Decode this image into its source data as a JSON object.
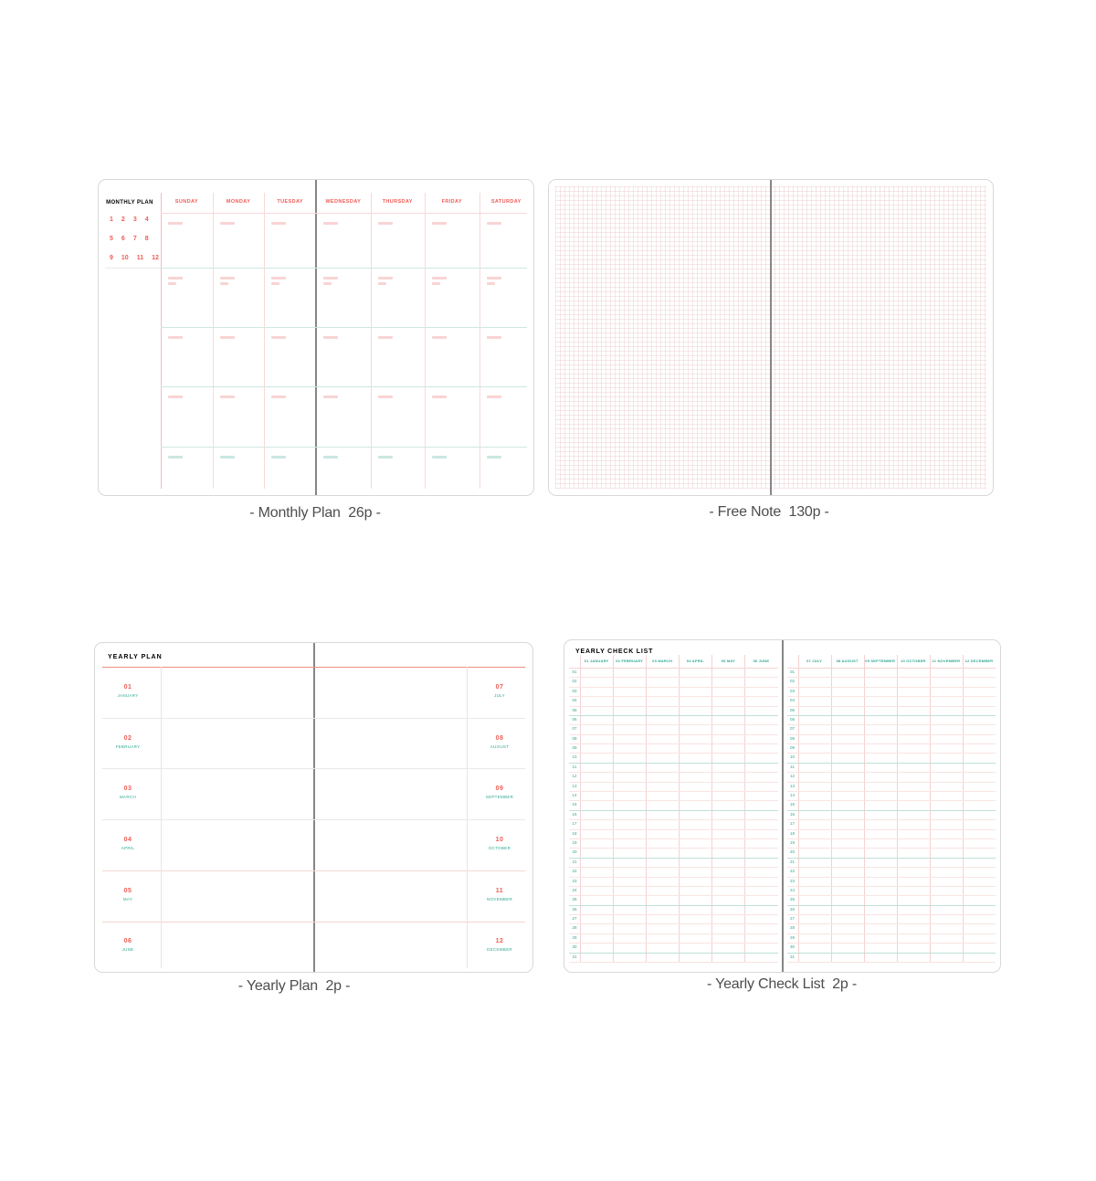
{
  "colors": {
    "coral": "#f05c55",
    "coral_light_line": "#f8d9d9",
    "coral_strong_line": "#f2bcbc",
    "teal": "#2fa893",
    "teal_line": "#cfe8e1",
    "teal_row_line": "#bfe0d8",
    "pink_row_line": "#f8e4e2",
    "gray_line": "#e9e9e9",
    "page_border": "#d8d8d8",
    "spine": "#868686",
    "caption_text": "#4d4d4d"
  },
  "monthly_plan": {
    "title": "MONTHLY PLAN",
    "mini_calendar": [
      [
        "1",
        "2",
        "3",
        "4"
      ],
      [
        "5",
        "6",
        "7",
        "8"
      ],
      [
        "9",
        "10",
        "11",
        "12"
      ]
    ],
    "day_headers_left": [
      "SUNDAY",
      "MONDAY",
      "TUESDAY"
    ],
    "day_headers_right": [
      "WEDNESDAY",
      "THURSDAY",
      "FRIDAY",
      "SATURDAY"
    ],
    "caption": "- Monthly Plan  26p -"
  },
  "free_note": {
    "caption": "- Free Note  130p -"
  },
  "yearly_plan": {
    "title": "YEARLY PLAN",
    "months_left": [
      {
        "num": "01",
        "name": "JANUARY"
      },
      {
        "num": "02",
        "name": "FEBRUARY"
      },
      {
        "num": "03",
        "name": "MARCH"
      },
      {
        "num": "04",
        "name": "APRIL"
      },
      {
        "num": "05",
        "name": "MAY"
      },
      {
        "num": "06",
        "name": "JUNE"
      }
    ],
    "months_right": [
      {
        "num": "07",
        "name": "JULY"
      },
      {
        "num": "08",
        "name": "AUGUST"
      },
      {
        "num": "09",
        "name": "SEPTEMBER"
      },
      {
        "num": "10",
        "name": "OCTOBER"
      },
      {
        "num": "11",
        "name": "NOVEMBER"
      },
      {
        "num": "12",
        "name": "DECEMBER"
      }
    ],
    "caption": "- Yearly Plan  2p -"
  },
  "yearly_checklist": {
    "title": "YEARLY CHECK LIST",
    "months_left": [
      "01 JANUARY",
      "02 FEBRUARY",
      "03 MARCH",
      "04 APRIL",
      "05 MAY",
      "06 JUNE"
    ],
    "months_right": [
      "07 JULY",
      "08 AUGUST",
      "09 SEPTEMBER",
      "10 OCTOBER",
      "11 NOVEMBER",
      "12 DECEMBER"
    ],
    "day_numbers": [
      "01",
      "02",
      "03",
      "04",
      "05",
      "06",
      "07",
      "08",
      "09",
      "10",
      "11",
      "12",
      "13",
      "14",
      "15",
      "16",
      "17",
      "18",
      "19",
      "20",
      "21",
      "22",
      "23",
      "24",
      "25",
      "26",
      "27",
      "28",
      "29",
      "30",
      "31"
    ],
    "caption": "- Yearly Check List  2p -"
  }
}
